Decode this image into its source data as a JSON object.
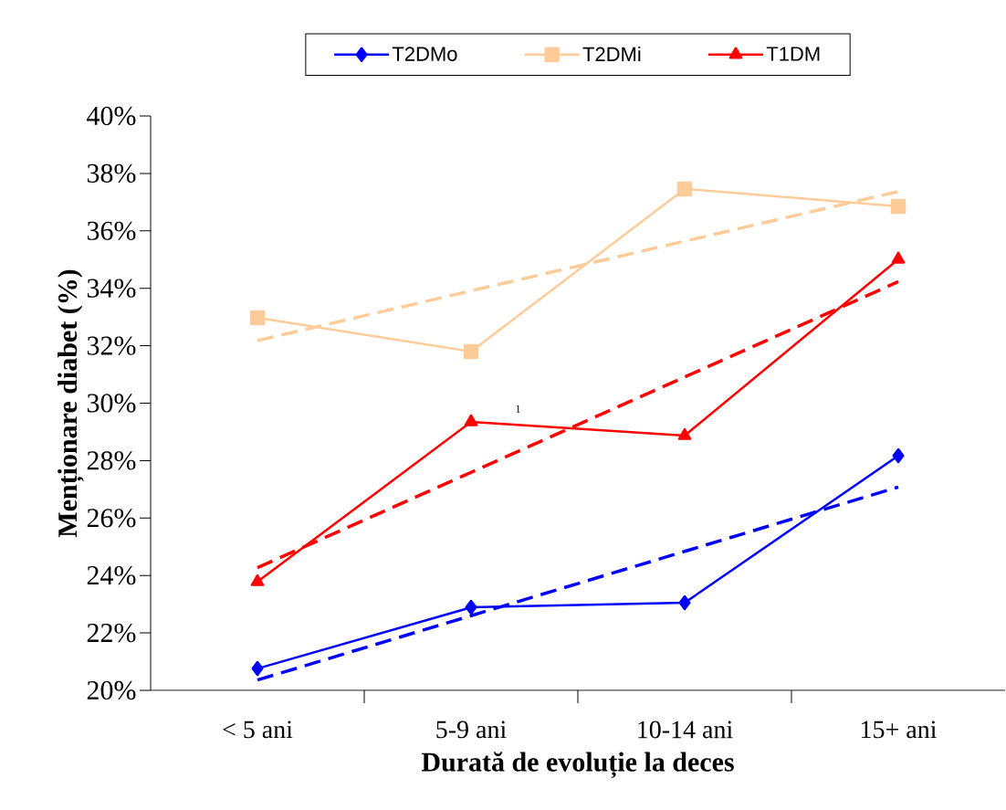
{
  "chart_data": {
    "type": "line",
    "xlabel": "Durată de evoluție la deces",
    "ylabel": "Menționare diabet (%)",
    "categories": [
      "< 5 ani",
      "5-9 ani",
      "10-14 ani",
      "15+ ani"
    ],
    "series": [
      {
        "name": "T2DMo",
        "color": "#0000ff",
        "marker": "diamond",
        "line_style": "solid",
        "values": [
          20.76,
          22.89,
          23.05,
          28.17
        ]
      },
      {
        "name": "T2DMi",
        "color": "#ffcc99",
        "marker": "square",
        "line_style": "solid",
        "values": [
          32.97,
          31.8,
          37.46,
          36.85
        ]
      },
      {
        "name": "T1DM",
        "color": "#ff0000",
        "marker": "triangle",
        "line_style": "solid",
        "values": [
          23.78,
          29.35,
          28.87,
          35.01
        ]
      },
      {
        "color": "#0000ff",
        "marker": "none",
        "line_style": "dashed",
        "values": [
          20.36,
          22.6,
          24.84,
          27.08
        ]
      },
      {
        "color": "#ffcc99",
        "marker": "none",
        "line_style": "dashed",
        "values": [
          32.18,
          33.91,
          35.64,
          37.37
        ]
      },
      {
        "color": "#ff0000",
        "marker": "none",
        "line_style": "dashed",
        "values": [
          24.27,
          27.59,
          30.91,
          34.23
        ]
      }
    ],
    "ylim": [
      20,
      40
    ],
    "yticks": [
      {
        "value": 20,
        "label": "20%"
      },
      {
        "value": 22,
        "label": "22%"
      },
      {
        "value": 24,
        "label": "24%"
      },
      {
        "value": 26,
        "label": "26%"
      },
      {
        "value": 28,
        "label": "28%"
      },
      {
        "value": 30,
        "label": "30%"
      },
      {
        "value": 32,
        "label": "32%"
      },
      {
        "value": 34,
        "label": "34%"
      },
      {
        "value": 36,
        "label": "36%"
      },
      {
        "value": 38,
        "label": "38%"
      },
      {
        "value": 40,
        "label": "40%"
      }
    ],
    "grid": false,
    "legend": "top",
    "annotations": [
      "1"
    ]
  }
}
